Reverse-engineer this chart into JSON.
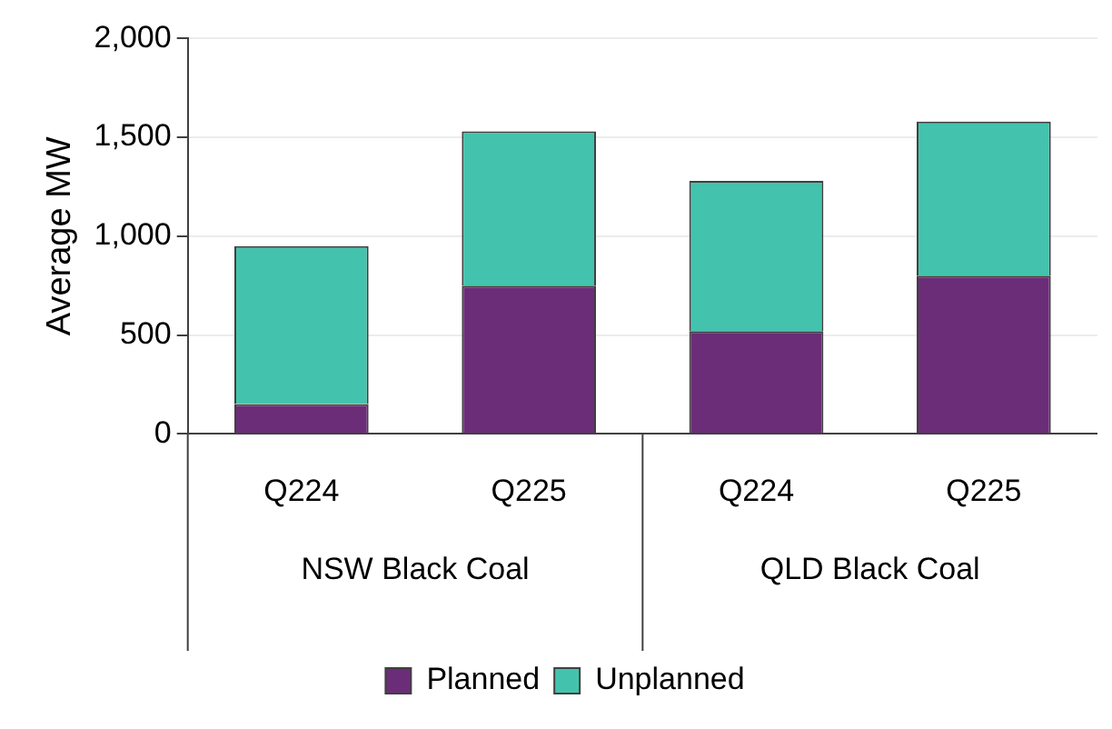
{
  "chart_data": {
    "type": "bar",
    "ylabel": "Average MW",
    "categories": [
      "Q224",
      "Q225",
      "Q224",
      "Q225"
    ],
    "annotations": [
      "NSW Black Coal",
      "QLD Black Coal"
    ],
    "stacked": true,
    "series": [
      {
        "name": "Planned",
        "color": "#6b2d77",
        "values": [
          150,
          750,
          520,
          800
        ]
      },
      {
        "name": "Unplanned",
        "color": "#43c3ad",
        "values": [
          800,
          780,
          760,
          780
        ]
      }
    ],
    "ylim": [
      0,
      2000
    ],
    "yticks": [
      {
        "value": 0,
        "label": "0"
      },
      {
        "value": 500,
        "label": "500"
      },
      {
        "value": 1000,
        "label": "1,000"
      },
      {
        "value": 1500,
        "label": "1,500"
      },
      {
        "value": 2000,
        "label": "2,000"
      }
    ],
    "grid": "y",
    "legend": "bottom"
  }
}
